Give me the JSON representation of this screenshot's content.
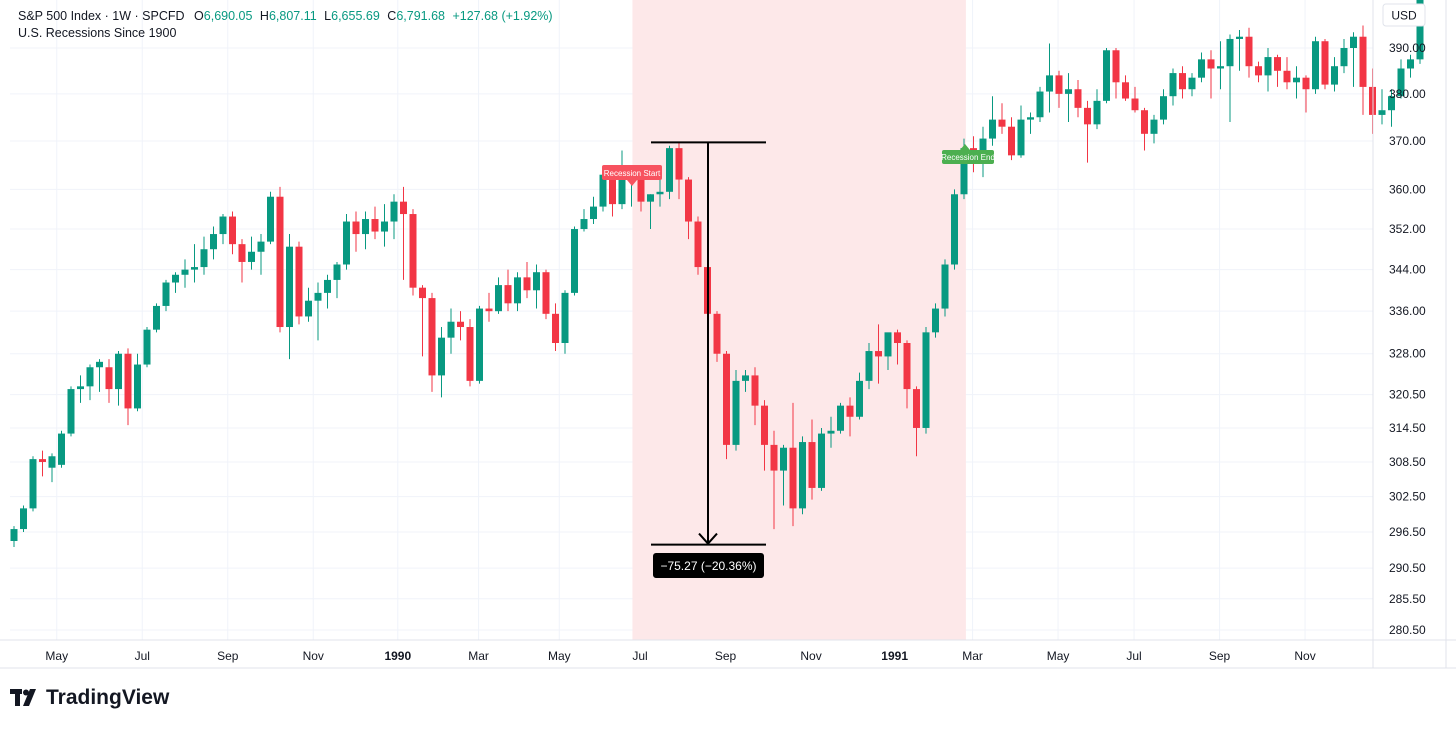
{
  "header": {
    "symbol": "S&P 500 Index",
    "interval": "1W",
    "source": "SPCFD",
    "open_key": "O",
    "open": "6,690.05",
    "high_key": "H",
    "high": "6,807.11",
    "low_key": "L",
    "low": "6,655.69",
    "close_key": "C",
    "close": "6,791.68",
    "change": "+127.68 (+1.92%)",
    "indicator": "U.S. Recessions Since 1900"
  },
  "currency_label": "USD",
  "brand": "TradingView",
  "colors": {
    "up": "#089981",
    "down": "#f23645",
    "recession_band": "#fde8e9",
    "grid": "#f0f3fa",
    "measure_box": "#000000",
    "recession_end": "#4caf50"
  },
  "chart_data": {
    "type": "candlestick",
    "y_scale": "log",
    "y_ticks": [
      390.0,
      380.0,
      370.0,
      360.0,
      352.0,
      344.0,
      336.0,
      328.0,
      320.5,
      314.5,
      308.5,
      302.5,
      296.5,
      290.5,
      285.5,
      280.5
    ],
    "y_tick_labels": [
      "390.00",
      "380.00",
      "370.00",
      "360.00",
      "352.00",
      "344.00",
      "336.00",
      "328.00",
      "320.50",
      "314.50",
      "308.50",
      "302.50",
      "296.50",
      "290.50",
      "285.50",
      "280.50"
    ],
    "x_ticks": [
      {
        "label": "May",
        "bold": false,
        "week": 4.5
      },
      {
        "label": "Jul",
        "bold": false,
        "week": 13.5
      },
      {
        "label": "Sep",
        "bold": false,
        "week": 22.5
      },
      {
        "label": "Nov",
        "bold": false,
        "week": 31.5
      },
      {
        "label": "1990",
        "bold": true,
        "week": 40.4
      },
      {
        "label": "Mar",
        "bold": false,
        "week": 48.9
      },
      {
        "label": "May",
        "bold": false,
        "week": 57.4
      },
      {
        "label": "Jul",
        "bold": false,
        "week": 65.9
      },
      {
        "label": "Sep",
        "bold": false,
        "week": 74.9
      },
      {
        "label": "Nov",
        "bold": false,
        "week": 83.9
      },
      {
        "label": "1991",
        "bold": true,
        "week": 92.7
      },
      {
        "label": "Mar",
        "bold": false,
        "week": 100.9
      },
      {
        "label": "May",
        "bold": false,
        "week": 109.9
      },
      {
        "label": "Jul",
        "bold": false,
        "week": 117.9
      },
      {
        "label": "Sep",
        "bold": false,
        "week": 126.9
      },
      {
        "label": "Nov",
        "bold": false,
        "week": 135.9
      }
    ],
    "recession": {
      "start_week": 65.1,
      "end_week": 100.2,
      "start_label": "Recession Start",
      "end_label": "Recession End"
    },
    "measure": {
      "high": 369.7,
      "low": 294.4,
      "label": "−75.27 (−20.36%)"
    },
    "candles": [
      {
        "o": 295.0,
        "h": 297.5,
        "l": 294.0,
        "c": 297.0
      },
      {
        "o": 297.0,
        "h": 301.0,
        "l": 296.5,
        "c": 300.5
      },
      {
        "o": 300.5,
        "h": 309.5,
        "l": 300.0,
        "c": 309.0
      },
      {
        "o": 309.0,
        "h": 310.5,
        "l": 306.0,
        "c": 308.5
      },
      {
        "o": 307.5,
        "h": 310.0,
        "l": 305.0,
        "c": 309.5
      },
      {
        "o": 308.0,
        "h": 314.0,
        "l": 307.5,
        "c": 313.5
      },
      {
        "o": 313.5,
        "h": 322.0,
        "l": 313.0,
        "c": 321.5
      },
      {
        "o": 321.5,
        "h": 324.0,
        "l": 319.0,
        "c": 322.0
      },
      {
        "o": 322.0,
        "h": 326.0,
        "l": 319.5,
        "c": 325.5
      },
      {
        "o": 325.5,
        "h": 327.0,
        "l": 321.0,
        "c": 326.5
      },
      {
        "o": 325.5,
        "h": 327.0,
        "l": 319.0,
        "c": 321.5
      },
      {
        "o": 321.5,
        "h": 328.5,
        "l": 318.5,
        "c": 328.0
      },
      {
        "o": 328.0,
        "h": 329.0,
        "l": 315.0,
        "c": 318.0
      },
      {
        "o": 318.0,
        "h": 328.0,
        "l": 317.5,
        "c": 326.0
      },
      {
        "o": 326.0,
        "h": 333.0,
        "l": 325.5,
        "c": 332.5
      },
      {
        "o": 332.5,
        "h": 337.5,
        "l": 332.0,
        "c": 337.0
      },
      {
        "o": 337.0,
        "h": 342.0,
        "l": 336.0,
        "c": 341.5
      },
      {
        "o": 341.5,
        "h": 343.5,
        "l": 339.5,
        "c": 343.0
      },
      {
        "o": 343.0,
        "h": 346.0,
        "l": 340.5,
        "c": 344.0
      },
      {
        "o": 344.0,
        "h": 349.0,
        "l": 341.5,
        "c": 344.5
      },
      {
        "o": 344.5,
        "h": 350.5,
        "l": 343.0,
        "c": 348.0
      },
      {
        "o": 348.0,
        "h": 352.5,
        "l": 346.0,
        "c": 351.0
      },
      {
        "o": 351.0,
        "h": 355.0,
        "l": 349.0,
        "c": 354.5
      },
      {
        "o": 354.5,
        "h": 355.5,
        "l": 347.0,
        "c": 349.0
      },
      {
        "o": 349.0,
        "h": 350.0,
        "l": 341.5,
        "c": 345.5
      },
      {
        "o": 345.5,
        "h": 350.5,
        "l": 344.0,
        "c": 347.5
      },
      {
        "o": 347.5,
        "h": 351.0,
        "l": 343.0,
        "c": 349.5
      },
      {
        "o": 349.5,
        "h": 359.5,
        "l": 349.0,
        "c": 358.5
      },
      {
        "o": 358.5,
        "h": 360.5,
        "l": 332.0,
        "c": 333.0
      },
      {
        "o": 333.0,
        "h": 351.0,
        "l": 327.0,
        "c": 348.5
      },
      {
        "o": 348.5,
        "h": 349.5,
        "l": 333.5,
        "c": 335.0
      },
      {
        "o": 335.0,
        "h": 340.5,
        "l": 334.0,
        "c": 338.0
      },
      {
        "o": 338.0,
        "h": 341.5,
        "l": 330.5,
        "c": 339.5
      },
      {
        "o": 339.5,
        "h": 343.0,
        "l": 336.5,
        "c": 342.0
      },
      {
        "o": 342.0,
        "h": 345.5,
        "l": 338.5,
        "c": 345.0
      },
      {
        "o": 345.0,
        "h": 355.0,
        "l": 344.0,
        "c": 353.5
      },
      {
        "o": 353.5,
        "h": 355.5,
        "l": 347.5,
        "c": 351.0
      },
      {
        "o": 351.0,
        "h": 355.5,
        "l": 348.0,
        "c": 354.0
      },
      {
        "o": 354.0,
        "h": 356.5,
        "l": 350.0,
        "c": 351.5
      },
      {
        "o": 351.5,
        "h": 357.0,
        "l": 348.5,
        "c": 353.5
      },
      {
        "o": 353.5,
        "h": 359.0,
        "l": 350.0,
        "c": 357.5
      },
      {
        "o": 357.5,
        "h": 360.5,
        "l": 342.0,
        "c": 355.0
      },
      {
        "o": 355.0,
        "h": 356.0,
        "l": 339.0,
        "c": 340.5
      },
      {
        "o": 340.5,
        "h": 341.0,
        "l": 327.5,
        "c": 338.5
      },
      {
        "o": 338.5,
        "h": 339.5,
        "l": 321.0,
        "c": 324.0
      },
      {
        "o": 324.0,
        "h": 333.0,
        "l": 320.0,
        "c": 331.0
      },
      {
        "o": 331.0,
        "h": 336.5,
        "l": 328.0,
        "c": 334.0
      },
      {
        "o": 334.0,
        "h": 336.0,
        "l": 330.5,
        "c": 333.0
      },
      {
        "o": 333.0,
        "h": 334.5,
        "l": 322.0,
        "c": 323.0
      },
      {
        "o": 323.0,
        "h": 337.0,
        "l": 322.5,
        "c": 336.5
      },
      {
        "o": 336.5,
        "h": 339.5,
        "l": 334.0,
        "c": 336.0
      },
      {
        "o": 336.0,
        "h": 342.5,
        "l": 335.5,
        "c": 341.0
      },
      {
        "o": 341.0,
        "h": 344.0,
        "l": 336.0,
        "c": 337.5
      },
      {
        "o": 337.5,
        "h": 343.5,
        "l": 336.0,
        "c": 342.5
      },
      {
        "o": 342.5,
        "h": 345.5,
        "l": 338.5,
        "c": 340.0
      },
      {
        "o": 340.0,
        "h": 345.0,
        "l": 336.5,
        "c": 343.5
      },
      {
        "o": 343.5,
        "h": 344.0,
        "l": 334.5,
        "c": 335.5
      },
      {
        "o": 335.5,
        "h": 337.5,
        "l": 328.5,
        "c": 330.0
      },
      {
        "o": 330.0,
        "h": 340.0,
        "l": 328.0,
        "c": 339.5
      },
      {
        "o": 339.5,
        "h": 352.5,
        "l": 339.0,
        "c": 352.0
      },
      {
        "o": 352.0,
        "h": 356.0,
        "l": 351.5,
        "c": 354.0
      },
      {
        "o": 354.0,
        "h": 358.5,
        "l": 353.0,
        "c": 356.5
      },
      {
        "o": 356.5,
        "h": 364.0,
        "l": 355.5,
        "c": 363.0
      },
      {
        "o": 363.0,
        "h": 363.5,
        "l": 354.5,
        "c": 357.0
      },
      {
        "o": 357.0,
        "h": 368.0,
        "l": 356.0,
        "c": 362.0
      },
      {
        "o": 362.0,
        "h": 364.5,
        "l": 356.5,
        "c": 363.5
      },
      {
        "o": 363.5,
        "h": 364.0,
        "l": 355.5,
        "c": 357.5
      },
      {
        "o": 357.5,
        "h": 359.0,
        "l": 352.0,
        "c": 359.0
      },
      {
        "o": 359.0,
        "h": 362.0,
        "l": 356.5,
        "c": 359.5
      },
      {
        "o": 359.5,
        "h": 369.0,
        "l": 358.0,
        "c": 368.5
      },
      {
        "o": 368.5,
        "h": 369.7,
        "l": 358.0,
        "c": 362.0
      },
      {
        "o": 362.0,
        "h": 362.5,
        "l": 350.0,
        "c": 353.5
      },
      {
        "o": 353.5,
        "h": 354.5,
        "l": 343.0,
        "c": 344.5
      },
      {
        "o": 344.5,
        "h": 345.0,
        "l": 334.0,
        "c": 335.5
      },
      {
        "o": 335.5,
        "h": 336.0,
        "l": 326.5,
        "c": 328.0
      },
      {
        "o": 328.0,
        "h": 328.5,
        "l": 309.0,
        "c": 311.5
      },
      {
        "o": 311.5,
        "h": 325.0,
        "l": 310.5,
        "c": 323.0
      },
      {
        "o": 323.0,
        "h": 325.0,
        "l": 321.0,
        "c": 324.0
      },
      {
        "o": 324.0,
        "h": 325.5,
        "l": 315.0,
        "c": 318.5
      },
      {
        "o": 318.5,
        "h": 319.5,
        "l": 307.0,
        "c": 311.5
      },
      {
        "o": 311.5,
        "h": 314.0,
        "l": 297.0,
        "c": 307.0
      },
      {
        "o": 307.0,
        "h": 311.5,
        "l": 301.0,
        "c": 311.0
      },
      {
        "o": 311.0,
        "h": 319.0,
        "l": 297.5,
        "c": 300.5
      },
      {
        "o": 300.5,
        "h": 313.0,
        "l": 299.5,
        "c": 312.0
      },
      {
        "o": 312.0,
        "h": 316.0,
        "l": 302.0,
        "c": 304.0
      },
      {
        "o": 304.0,
        "h": 314.5,
        "l": 303.5,
        "c": 313.5
      },
      {
        "o": 313.5,
        "h": 316.5,
        "l": 311.0,
        "c": 314.0
      },
      {
        "o": 314.0,
        "h": 319.0,
        "l": 313.5,
        "c": 318.5
      },
      {
        "o": 318.5,
        "h": 320.0,
        "l": 313.0,
        "c": 316.5
      },
      {
        "o": 316.5,
        "h": 324.5,
        "l": 316.0,
        "c": 323.0
      },
      {
        "o": 323.0,
        "h": 330.0,
        "l": 321.5,
        "c": 328.5
      },
      {
        "o": 328.5,
        "h": 333.5,
        "l": 322.5,
        "c": 327.5
      },
      {
        "o": 327.5,
        "h": 331.5,
        "l": 325.0,
        "c": 332.0
      },
      {
        "o": 332.0,
        "h": 332.5,
        "l": 326.0,
        "c": 330.0
      },
      {
        "o": 330.0,
        "h": 330.5,
        "l": 318.0,
        "c": 321.5
      },
      {
        "o": 321.5,
        "h": 322.0,
        "l": 309.5,
        "c": 314.5
      },
      {
        "o": 314.5,
        "h": 333.0,
        "l": 313.5,
        "c": 332.0
      },
      {
        "o": 332.0,
        "h": 337.5,
        "l": 331.0,
        "c": 336.5
      },
      {
        "o": 336.5,
        "h": 346.0,
        "l": 335.0,
        "c": 345.0
      },
      {
        "o": 345.0,
        "h": 360.0,
        "l": 344.0,
        "c": 359.0
      },
      {
        "o": 359.0,
        "h": 370.5,
        "l": 358.0,
        "c": 368.5
      },
      {
        "o": 368.5,
        "h": 371.0,
        "l": 363.5,
        "c": 366.5
      },
      {
        "o": 366.5,
        "h": 373.0,
        "l": 362.5,
        "c": 370.5
      },
      {
        "o": 370.5,
        "h": 379.5,
        "l": 369.0,
        "c": 374.5
      },
      {
        "o": 374.5,
        "h": 378.0,
        "l": 371.5,
        "c": 373.0
      },
      {
        "o": 373.0,
        "h": 375.0,
        "l": 366.0,
        "c": 367.0
      },
      {
        "o": 367.0,
        "h": 377.5,
        "l": 366.5,
        "c": 374.5
      },
      {
        "o": 374.5,
        "h": 376.0,
        "l": 371.5,
        "c": 375.0
      },
      {
        "o": 375.0,
        "h": 381.5,
        "l": 374.0,
        "c": 380.5
      },
      {
        "o": 380.5,
        "h": 391.0,
        "l": 376.0,
        "c": 384.0
      },
      {
        "o": 384.0,
        "h": 385.0,
        "l": 377.0,
        "c": 380.0
      },
      {
        "o": 380.0,
        "h": 384.5,
        "l": 374.0,
        "c": 381.0
      },
      {
        "o": 381.0,
        "h": 383.0,
        "l": 375.0,
        "c": 377.0
      },
      {
        "o": 377.0,
        "h": 378.5,
        "l": 365.5,
        "c": 373.5
      },
      {
        "o": 373.5,
        "h": 381.0,
        "l": 372.5,
        "c": 378.5
      },
      {
        "o": 378.5,
        "h": 390.0,
        "l": 378.0,
        "c": 389.5
      },
      {
        "o": 389.5,
        "h": 390.0,
        "l": 379.0,
        "c": 382.5
      },
      {
        "o": 382.5,
        "h": 384.0,
        "l": 378.5,
        "c": 379.0
      },
      {
        "o": 379.0,
        "h": 381.5,
        "l": 376.0,
        "c": 376.5
      },
      {
        "o": 376.5,
        "h": 377.0,
        "l": 368.0,
        "c": 371.5
      },
      {
        "o": 371.5,
        "h": 375.5,
        "l": 369.5,
        "c": 374.5
      },
      {
        "o": 374.5,
        "h": 381.0,
        "l": 373.5,
        "c": 379.5
      },
      {
        "o": 379.5,
        "h": 385.5,
        "l": 377.5,
        "c": 384.5
      },
      {
        "o": 384.5,
        "h": 386.0,
        "l": 379.0,
        "c": 381.0
      },
      {
        "o": 381.0,
        "h": 384.5,
        "l": 379.5,
        "c": 383.5
      },
      {
        "o": 383.5,
        "h": 389.0,
        "l": 382.5,
        "c": 387.5
      },
      {
        "o": 387.5,
        "h": 389.5,
        "l": 379.0,
        "c": 385.5
      },
      {
        "o": 385.5,
        "h": 391.5,
        "l": 381.0,
        "c": 386.0
      },
      {
        "o": 386.0,
        "h": 393.0,
        "l": 374.0,
        "c": 392.0
      },
      {
        "o": 392.0,
        "h": 394.0,
        "l": 385.0,
        "c": 392.5
      },
      {
        "o": 392.5,
        "h": 394.5,
        "l": 383.5,
        "c": 386.0
      },
      {
        "o": 386.0,
        "h": 387.0,
        "l": 382.5,
        "c": 384.0
      },
      {
        "o": 384.0,
        "h": 390.0,
        "l": 380.5,
        "c": 388.0
      },
      {
        "o": 388.0,
        "h": 388.5,
        "l": 381.5,
        "c": 385.0
      },
      {
        "o": 385.0,
        "h": 388.0,
        "l": 381.0,
        "c": 382.5
      },
      {
        "o": 382.5,
        "h": 386.0,
        "l": 379.0,
        "c": 383.5
      },
      {
        "o": 383.5,
        "h": 384.0,
        "l": 376.0,
        "c": 381.0
      },
      {
        "o": 381.0,
        "h": 392.5,
        "l": 380.0,
        "c": 391.5
      },
      {
        "o": 391.5,
        "h": 392.0,
        "l": 381.0,
        "c": 382.0
      },
      {
        "o": 382.0,
        "h": 388.0,
        "l": 380.5,
        "c": 386.0
      },
      {
        "o": 386.0,
        "h": 392.0,
        "l": 384.5,
        "c": 390.0
      },
      {
        "o": 390.0,
        "h": 393.5,
        "l": 381.5,
        "c": 392.5
      },
      {
        "o": 392.5,
        "h": 395.0,
        "l": 375.5,
        "c": 381.5
      },
      {
        "o": 381.5,
        "h": 385.5,
        "l": 371.5,
        "c": 375.5
      },
      {
        "o": 375.5,
        "h": 381.0,
        "l": 373.5,
        "c": 376.5
      },
      {
        "o": 376.5,
        "h": 381.0,
        "l": 373.0,
        "c": 379.5
      },
      {
        "o": 379.5,
        "h": 387.5,
        "l": 379.0,
        "c": 385.5
      },
      {
        "o": 385.5,
        "h": 388.5,
        "l": 383.5,
        "c": 387.5
      },
      {
        "o": 387.5,
        "h": 403.0,
        "l": 386.5,
        "c": 402.0
      }
    ]
  }
}
